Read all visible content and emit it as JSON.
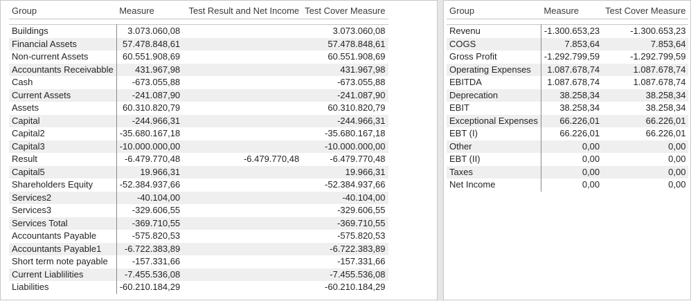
{
  "left_table": {
    "headers": [
      "Group",
      "Measure",
      "Test Result and Net Income",
      "Test Cover Measure"
    ],
    "rows": [
      {
        "group": "Buildings",
        "measure": "3.073.060,08",
        "test_result": "",
        "test_cover": "3.073.060,08"
      },
      {
        "group": "Financial Assets",
        "measure": "57.478.848,61",
        "test_result": "",
        "test_cover": "57.478.848,61"
      },
      {
        "group": "Non-current Assets",
        "measure": "60.551.908,69",
        "test_result": "",
        "test_cover": "60.551.908,69"
      },
      {
        "group": "Accountants Receivabble",
        "measure": "431.967,98",
        "test_result": "",
        "test_cover": "431.967,98"
      },
      {
        "group": "Cash",
        "measure": "-673.055,88",
        "test_result": "",
        "test_cover": "-673.055,88"
      },
      {
        "group": "Current Assets",
        "measure": "-241.087,90",
        "test_result": "",
        "test_cover": "-241.087,90"
      },
      {
        "group": "Assets",
        "measure": "60.310.820,79",
        "test_result": "",
        "test_cover": "60.310.820,79"
      },
      {
        "group": "Capital",
        "measure": "-244.966,31",
        "test_result": "",
        "test_cover": "-244.966,31"
      },
      {
        "group": "Capital2",
        "measure": "-35.680.167,18",
        "test_result": "",
        "test_cover": "-35.680.167,18"
      },
      {
        "group": "Capital3",
        "measure": "-10.000.000,00",
        "test_result": "",
        "test_cover": "-10.000.000,00"
      },
      {
        "group": "Result",
        "measure": "-6.479.770,48",
        "test_result": "-6.479.770,48",
        "test_cover": "-6.479.770,48"
      },
      {
        "group": "Capital5",
        "measure": "19.966,31",
        "test_result": "",
        "test_cover": "19.966,31"
      },
      {
        "group": "Shareholders Equity",
        "measure": "-52.384.937,66",
        "test_result": "",
        "test_cover": "-52.384.937,66"
      },
      {
        "group": "Services2",
        "measure": "-40.104,00",
        "test_result": "",
        "test_cover": "-40.104,00"
      },
      {
        "group": "Services3",
        "measure": "-329.606,55",
        "test_result": "",
        "test_cover": "-329.606,55"
      },
      {
        "group": "Services Total",
        "measure": "-369.710,55",
        "test_result": "",
        "test_cover": "-369.710,55"
      },
      {
        "group": "Accountants Payable",
        "measure": "-575.820,53",
        "test_result": "",
        "test_cover": "-575.820,53"
      },
      {
        "group": "Accountants Payable1",
        "measure": "-6.722.383,89",
        "test_result": "",
        "test_cover": "-6.722.383,89"
      },
      {
        "group": "Short term note payable",
        "measure": "-157.331,66",
        "test_result": "",
        "test_cover": "-157.331,66"
      },
      {
        "group": "Current Liablilities",
        "measure": "-7.455.536,08",
        "test_result": "",
        "test_cover": "-7.455.536,08"
      },
      {
        "group": "Liabilities",
        "measure": "-60.210.184,29",
        "test_result": "",
        "test_cover": "-60.210.184,29"
      }
    ]
  },
  "right_table": {
    "headers": [
      "Group",
      "Measure",
      "Test Cover Measure"
    ],
    "rows": [
      {
        "group": "Revenu",
        "measure": "-1.300.653,23",
        "test_cover": "-1.300.653,23"
      },
      {
        "group": "COGS",
        "measure": "7.853,64",
        "test_cover": "7.853,64"
      },
      {
        "group": "Gross Profit",
        "measure": "-1.292.799,59",
        "test_cover": "-1.292.799,59"
      },
      {
        "group": "Operating Expenses",
        "measure": "1.087.678,74",
        "test_cover": "1.087.678,74"
      },
      {
        "group": "EBITDA",
        "measure": "1.087.678,74",
        "test_cover": "1.087.678,74"
      },
      {
        "group": "Deprecation",
        "measure": "38.258,34",
        "test_cover": "38.258,34"
      },
      {
        "group": "EBIT",
        "measure": "38.258,34",
        "test_cover": "38.258,34"
      },
      {
        "group": "Exceptional Expenses",
        "measure": "66.226,01",
        "test_cover": "66.226,01"
      },
      {
        "group": "EBT (I)",
        "measure": "66.226,01",
        "test_cover": "66.226,01"
      },
      {
        "group": "Other",
        "measure": "0,00",
        "test_cover": "0,00"
      },
      {
        "group": "EBT (II)",
        "measure": "0,00",
        "test_cover": "0,00"
      },
      {
        "group": "Taxes",
        "measure": "0,00",
        "test_cover": "0,00"
      },
      {
        "group": "Net Income",
        "measure": "0,00",
        "test_cover": "0,00"
      }
    ]
  }
}
